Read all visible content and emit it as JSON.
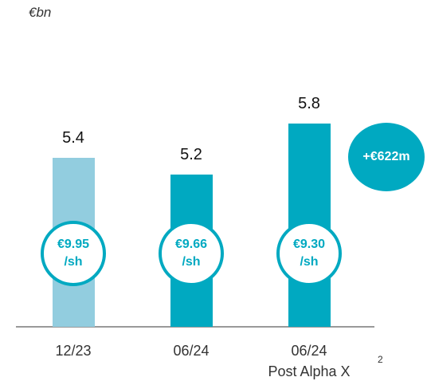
{
  "chart_data": {
    "type": "bar",
    "subtitle": "€bn",
    "categories": [
      "12/23",
      "06/24",
      "06/24\nPost Alpha X"
    ],
    "values": [
      5.4,
      5.2,
      5.8
    ],
    "colors": [
      "#92cddf",
      "#00a9c1",
      "#00a9c1"
    ],
    "bar_badges": [
      [
        "€9.95",
        "/sh"
      ],
      [
        "€9.66",
        "/sh"
      ],
      [
        "€9.30",
        "/sh"
      ]
    ],
    "annotation": "+€622m",
    "footnote": "2",
    "ylim": [
      3.4,
      6.0
    ]
  }
}
